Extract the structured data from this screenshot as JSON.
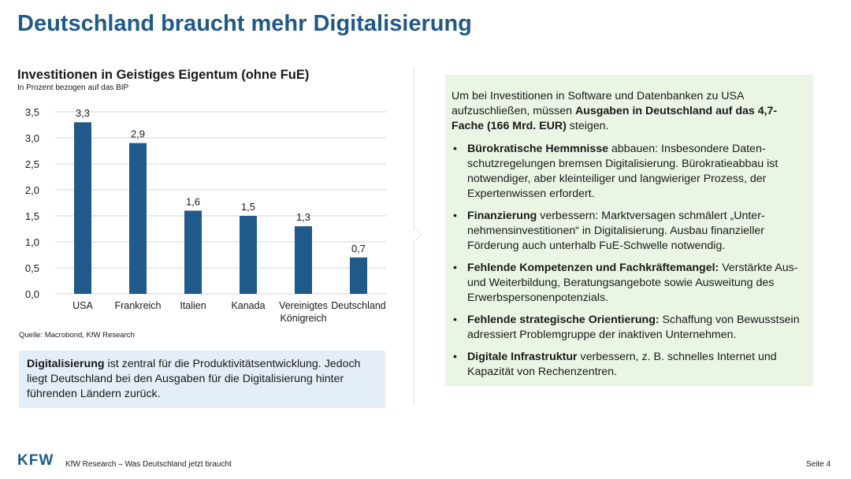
{
  "slide": {
    "title": "Deutschland braucht mehr Digitalisierung"
  },
  "chart_data": {
    "type": "bar",
    "title": "Investitionen in Geistiges Eigentum (ohne FuE)",
    "subtitle": "In Prozent bezogen auf das BIP",
    "categories": [
      "USA",
      "Frankreich",
      "Italien",
      "Kanada",
      "Vereinigtes Königreich",
      "Deutschland"
    ],
    "category_lines": [
      [
        "USA"
      ],
      [
        "Frankreich"
      ],
      [
        "Italien"
      ],
      [
        "Kanada"
      ],
      [
        "Vereinigtes",
        "Königreich"
      ],
      [
        "Deutschland"
      ]
    ],
    "values": [
      3.3,
      2.9,
      1.6,
      1.5,
      1.3,
      0.7
    ],
    "value_labels": [
      "3,3",
      "2,9",
      "1,6",
      "1,5",
      "1,3",
      "0,7"
    ],
    "yticks": [
      0,
      0.5,
      1,
      1.5,
      2,
      2.5,
      3,
      3.5
    ],
    "ytick_labels": [
      "0,0",
      "0,5",
      "1,0",
      "1,5",
      "2,0",
      "2,5",
      "3,0",
      "3,5"
    ],
    "ylim": [
      0,
      3.5
    ],
    "grid": true,
    "bar_color": "#1f5a8a"
  },
  "source": "Quelle: Macrobond, KfW Research",
  "info_box": {
    "bold": "Digitalisierung",
    "rest": " ist zentral für die Produktivitätsentwicklung. Jedoch liegt Deutschland bei den Ausgaben für die Digitalisierung hinter führenden Ländern zurück."
  },
  "right_panel": {
    "intro_pre": "Um bei Investitionen in Software und Datenbanken zu USA aufzuschließen, müssen ",
    "intro_bold": "Ausgaben in Deutschland auf das 4,7-Fache (166 Mrd. EUR)",
    "intro_post": " steigen.",
    "bullet_symbol": "•",
    "bullets": [
      {
        "bold": "Bürokratische Hemmnisse",
        "text": " abbauen: Insbesondere Daten-schutzregelungen bremsen Digitalisierung. Bürokratieabbau ist notwendiger, aber kleinteiliger und langwieriger Prozess, der Expertenwissen erfordert."
      },
      {
        "bold": "Finanzierung",
        "text": " verbessern: Marktversagen schmälert „Unter-nehmensinvestitionen“ in Digitalisierung. Ausbau finanzieller Förderung auch unterhalb FuE-Schwelle notwendig."
      },
      {
        "bold": "Fehlende Kompetenzen und Fachkräftemangel:",
        "text": " Verstärkte Aus- und Weiterbildung, Beratungsangebote sowie Ausweitung des Erwerbspersonenpotenzials."
      },
      {
        "bold": "Fehlende strategische Orientierung:",
        "text": " Schaffung von Bewusstsein adressiert Problemgruppe der inaktiven Unternehmen."
      },
      {
        "bold": "Digitale Infrastruktur",
        "text": " verbessern, z. B. schnelles Internet und Kapazität von Rechenzentren."
      }
    ]
  },
  "footer": {
    "logo": "KFW",
    "text": "KfW Research – Was Deutschland jetzt braucht",
    "page": "Seite 4"
  },
  "colors": {
    "title": "#1f5a8a",
    "info_box_bg": "#e4eef8",
    "right_box_bg": "#eaf5e4"
  }
}
